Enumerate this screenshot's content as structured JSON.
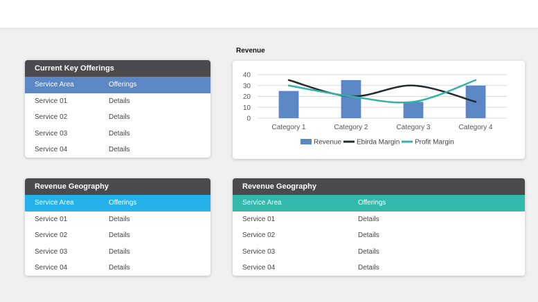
{
  "colors": {
    "header_dark": "#4b4a4f",
    "head_blue": "#5b87c5",
    "head_cyan": "#25b2ea",
    "head_teal": "#33b8ac",
    "bar_blue": "#5b87c5",
    "line_dark": "#262b30",
    "line_teal": "#33b3a6"
  },
  "panels": {
    "key_offerings": {
      "title": "Current Key Offerings",
      "columns": [
        "Service Area",
        "Offerings"
      ],
      "rows": [
        [
          "Service 01",
          "Details"
        ],
        [
          "Service 02",
          "Details"
        ],
        [
          "Service 03",
          "Details"
        ],
        [
          "Service 04",
          "Details"
        ]
      ]
    },
    "geo_left": {
      "title": "Revenue Geography",
      "columns": [
        "Service Area",
        "Offerings"
      ],
      "rows": [
        [
          "Service 01",
          "Details"
        ],
        [
          "Service 02",
          "Details"
        ],
        [
          "Service 03",
          "Details"
        ],
        [
          "Service 04",
          "Details"
        ]
      ]
    },
    "geo_right": {
      "title": "Revenue Geography",
      "columns": [
        "Service Area",
        "Offerings"
      ],
      "rows": [
        [
          "Service 01",
          "Details"
        ],
        [
          "Service 02",
          "Details"
        ],
        [
          "Service 03",
          "Details"
        ],
        [
          "Service 04",
          "Details"
        ]
      ]
    }
  },
  "chart_data": {
    "type": "bar",
    "title": "Revenue",
    "categories": [
      "Category 1",
      "Category 2",
      "Category 3",
      "Category 4"
    ],
    "ylim": [
      0,
      40
    ],
    "yticks": [
      0,
      10,
      20,
      30,
      40
    ],
    "grid": true,
    "legend_position": "bottom",
    "series": [
      {
        "name": "Revenue",
        "type": "bar",
        "values": [
          25,
          35,
          15,
          30
        ]
      },
      {
        "name": "Ebirda Margin",
        "type": "line",
        "values": [
          35,
          20,
          30,
          15
        ]
      },
      {
        "name": "Profit Margin",
        "type": "line",
        "values": [
          30,
          20,
          15,
          35
        ]
      }
    ]
  }
}
